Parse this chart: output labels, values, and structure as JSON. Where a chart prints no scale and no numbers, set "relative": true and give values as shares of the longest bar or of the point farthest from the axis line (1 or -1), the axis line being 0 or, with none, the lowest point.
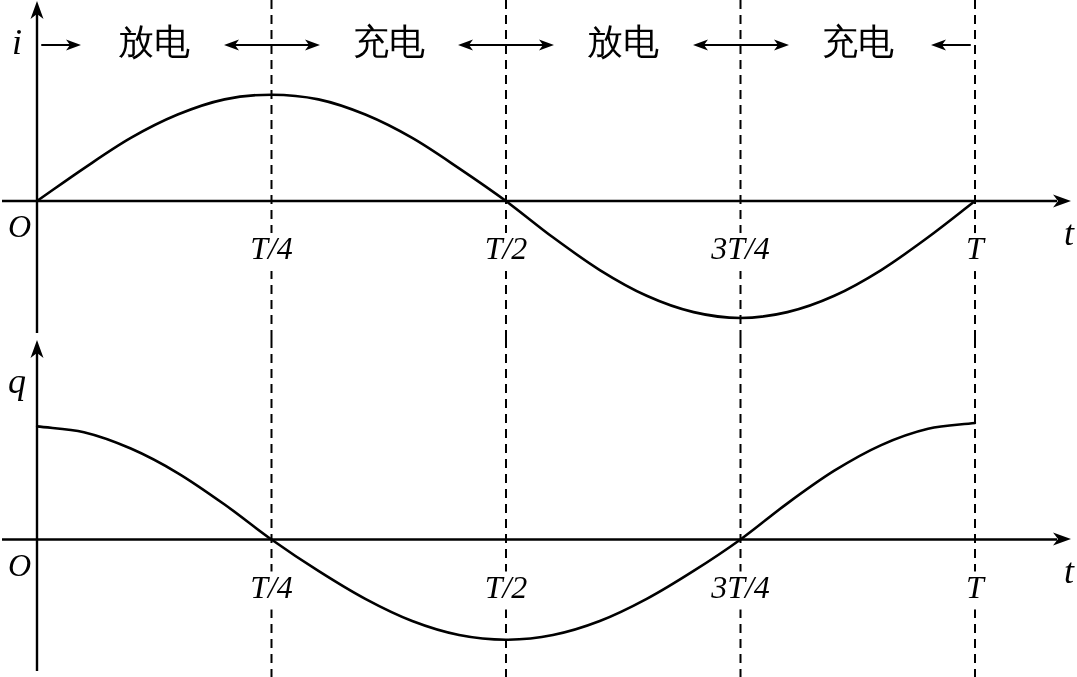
{
  "chart_data": [
    {
      "type": "line",
      "relative": true,
      "ylabel": "i",
      "xlabel": "t",
      "categories": [
        "O",
        null,
        null,
        null,
        null,
        "T/4",
        null,
        null,
        null,
        null,
        "T/2",
        null,
        null,
        null,
        null,
        "3T/4",
        null,
        null,
        null,
        null,
        "T"
      ],
      "values": [
        0,
        0.28,
        0.54,
        0.74,
        0.87,
        0.91,
        0.87,
        0.74,
        0.54,
        0.28,
        0,
        -0.31,
        -0.59,
        -0.81,
        -0.95,
        -1,
        -0.95,
        -0.81,
        -0.59,
        -0.31,
        0
      ],
      "color": "#000000",
      "ref_lines": [
        {
          "axis": "x",
          "value": "T/4",
          "line_style": "dashed"
        },
        {
          "axis": "x",
          "value": "T/2",
          "line_style": "dashed"
        },
        {
          "axis": "x",
          "value": "3T/4",
          "line_style": "dashed"
        },
        {
          "axis": "x",
          "value": "T",
          "line_style": "dashed"
        }
      ],
      "annotations": [
        "放电",
        "充电",
        "放电",
        "充电"
      ]
    },
    {
      "type": "line",
      "relative": true,
      "ylabel": "q",
      "xlabel": "t",
      "categories": [
        "O",
        null,
        null,
        null,
        null,
        "T/4",
        null,
        null,
        null,
        null,
        "T/2",
        null,
        null,
        null,
        null,
        "3T/4",
        null,
        null,
        null,
        null,
        "T"
      ],
      "values": [
        0.97,
        0.92,
        0.78,
        0.57,
        0.3,
        0,
        -0.27,
        -0.51,
        -0.7,
        -0.82,
        -0.86,
        -0.82,
        -0.7,
        -0.51,
        -0.27,
        0,
        0.31,
        0.59,
        0.81,
        0.95,
        1
      ],
      "color": "#000000",
      "ref_lines": [
        {
          "axis": "x",
          "value": "T/4",
          "line_style": "dashed"
        },
        {
          "axis": "x",
          "value": "T/2",
          "line_style": "dashed"
        },
        {
          "axis": "x",
          "value": "3T/4",
          "line_style": "dashed"
        },
        {
          "axis": "x",
          "value": "T",
          "line_style": "dashed"
        }
      ]
    }
  ]
}
